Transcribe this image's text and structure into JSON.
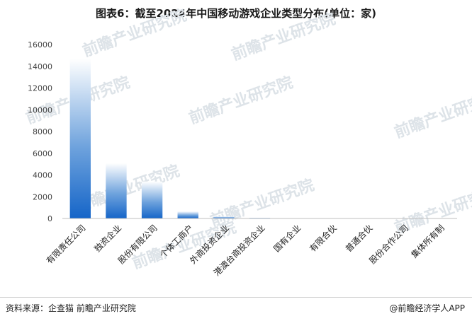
{
  "title": "图表6：截至2024年中国移动游戏企业类型分布(单位：家)",
  "watermark": "前瞻产业研究院",
  "footer": {
    "source": "资料来源：企查猫 前瞻产业研究院",
    "brand": "@前瞻经济学人APP"
  },
  "colors": {
    "bar_top": "#ffffff",
    "bar_bottom": "#1565c8",
    "axis": "#bfbfbf"
  },
  "chart_data": {
    "type": "bar",
    "title": "图表6：截至2024年中国移动游戏企业类型分布(单位：家)",
    "xlabel": "",
    "ylabel": "",
    "ylim": [
      0,
      16000
    ],
    "yticks": [
      0,
      2000,
      4000,
      6000,
      8000,
      10000,
      12000,
      14000,
      16000
    ],
    "grid": false,
    "legend": "none",
    "categories": [
      "有限责任公司",
      "独资企业",
      "股份有限公司",
      "个体工商户",
      "外商投资企业",
      "港澳台商投资企业",
      "国有企业",
      "有限合伙",
      "普通合伙",
      "股份合作公司",
      "集体所有制"
    ],
    "values": [
      14700,
      5100,
      3400,
      650,
      180,
      70,
      15,
      8,
      5,
      3,
      2
    ]
  }
}
